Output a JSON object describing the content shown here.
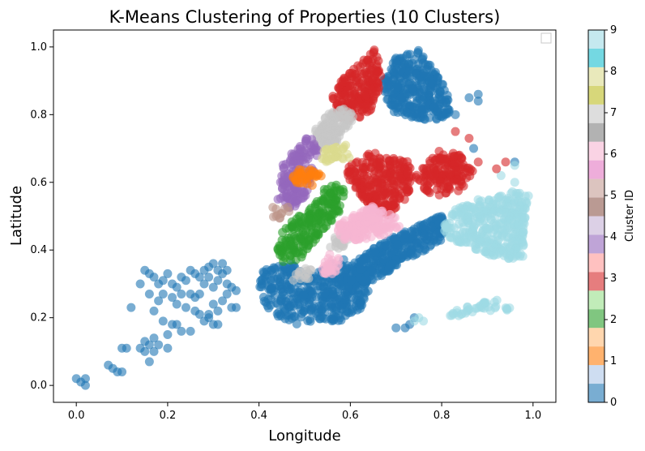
{
  "chart_data": {
    "type": "scatter",
    "title": "K-Means Clustering of Properties (10 Clusters)",
    "xlabel": "Longitude",
    "ylabel": "Latitude",
    "xlim": [
      -0.05,
      1.05
    ],
    "ylim": [
      -0.05,
      1.05
    ],
    "x_ticks": [
      0.0,
      0.2,
      0.4,
      0.6,
      0.8,
      1.0
    ],
    "y_ticks": [
      0.0,
      0.2,
      0.4,
      0.6,
      0.8,
      1.0
    ],
    "x_tick_labels": [
      "0.0",
      "0.2",
      "0.4",
      "0.6",
      "0.8",
      "1.0"
    ],
    "y_tick_labels": [
      "0.0",
      "0.2",
      "0.4",
      "0.6",
      "0.8",
      "1.0"
    ],
    "grid": false,
    "legend": "empty box, top-right",
    "colorbar": {
      "label": "Cluster ID",
      "ticks": [
        "0",
        "1",
        "2",
        "3",
        "4",
        "5",
        "6",
        "7",
        "8",
        "9"
      ],
      "colors": [
        "#1f77b4",
        "#aec7e8",
        "#ff7f0e",
        "#ffbb78",
        "#2ca02c",
        "#98df8a",
        "#d62728",
        "#ff9896",
        "#9467bd",
        "#c5b0d5",
        "#8c564b",
        "#c49c94",
        "#e377c2",
        "#f7b6d2",
        "#7f7f7f",
        "#c7c7c7",
        "#bcbd22",
        "#dbdb8d",
        "#17becf",
        "#9edae5"
      ]
    },
    "cluster_colors": {
      "0": "#1f77b4",
      "1": "#ff7f0e",
      "2": "#2ca02c",
      "3": "#d62728",
      "4": "#9467bd",
      "5": "#bc9488",
      "6": "#f7b6d2",
      "7": "#c7c7c7",
      "8": "#dbdb8d",
      "9": "#9edae5"
    },
    "series": [
      {
        "cluster": 0,
        "region": "western-scatter",
        "cx": 0.2,
        "cy": 0.2,
        "points": [
          [
            0.0,
            0.02
          ],
          [
            0.01,
            0.01
          ],
          [
            0.02,
            0.0
          ],
          [
            0.02,
            0.02
          ],
          [
            0.07,
            0.06
          ],
          [
            0.08,
            0.05
          ],
          [
            0.09,
            0.04
          ],
          [
            0.1,
            0.04
          ],
          [
            0.1,
            0.11
          ],
          [
            0.11,
            0.11
          ],
          [
            0.12,
            0.23
          ],
          [
            0.14,
            0.11
          ],
          [
            0.15,
            0.13
          ],
          [
            0.15,
            0.1
          ],
          [
            0.16,
            0.12
          ],
          [
            0.16,
            0.07
          ],
          [
            0.17,
            0.1
          ],
          [
            0.17,
            0.14
          ],
          [
            0.18,
            0.12
          ],
          [
            0.19,
            0.19
          ],
          [
            0.2,
            0.15
          ],
          [
            0.2,
            0.11
          ],
          [
            0.21,
            0.18
          ],
          [
            0.22,
            0.18
          ],
          [
            0.23,
            0.16
          ],
          [
            0.24,
            0.23
          ],
          [
            0.25,
            0.16
          ],
          [
            0.26,
            0.22
          ],
          [
            0.27,
            0.21
          ],
          [
            0.28,
            0.19
          ],
          [
            0.29,
            0.21
          ],
          [
            0.29,
            0.2
          ],
          [
            0.3,
            0.18
          ],
          [
            0.3,
            0.24
          ],
          [
            0.31,
            0.22
          ],
          [
            0.31,
            0.18
          ],
          [
            0.32,
            0.25
          ],
          [
            0.33,
            0.27
          ],
          [
            0.34,
            0.23
          ],
          [
            0.35,
            0.23
          ],
          [
            0.15,
            0.34
          ],
          [
            0.16,
            0.33
          ],
          [
            0.17,
            0.32
          ],
          [
            0.18,
            0.3
          ],
          [
            0.19,
            0.31
          ],
          [
            0.2,
            0.33
          ],
          [
            0.21,
            0.3
          ],
          [
            0.22,
            0.29
          ],
          [
            0.23,
            0.32
          ],
          [
            0.24,
            0.31
          ],
          [
            0.25,
            0.34
          ],
          [
            0.26,
            0.33
          ],
          [
            0.27,
            0.32
          ],
          [
            0.28,
            0.3
          ],
          [
            0.29,
            0.35
          ],
          [
            0.3,
            0.36
          ],
          [
            0.31,
            0.34
          ],
          [
            0.32,
            0.33
          ],
          [
            0.33,
            0.3
          ],
          [
            0.34,
            0.29
          ],
          [
            0.35,
            0.28
          ],
          [
            0.3,
            0.29
          ],
          [
            0.31,
            0.31
          ],
          [
            0.27,
            0.27
          ],
          [
            0.26,
            0.26
          ],
          [
            0.28,
            0.34
          ],
          [
            0.29,
            0.32
          ],
          [
            0.32,
            0.36
          ],
          [
            0.33,
            0.34
          ],
          [
            0.17,
            0.22
          ],
          [
            0.18,
            0.25
          ],
          [
            0.16,
            0.27
          ],
          [
            0.14,
            0.3
          ],
          [
            0.19,
            0.27
          ],
          [
            0.21,
            0.26
          ],
          [
            0.22,
            0.24
          ],
          [
            0.23,
            0.27
          ],
          [
            0.25,
            0.27
          ]
        ]
      },
      {
        "cluster": 0,
        "region": "southern-mass",
        "cx": 0.5,
        "cy": 0.28,
        "points": []
      },
      {
        "cluster": 0,
        "region": "northern-mass",
        "cx": 0.72,
        "cy": 0.88,
        "points": []
      },
      {
        "cluster": 0,
        "region": "eastern-strip",
        "cx": 0.75,
        "cy": 0.42,
        "points": []
      },
      {
        "cluster": 1,
        "region": "west-mid",
        "cx": 0.5,
        "cy": 0.62,
        "points": []
      },
      {
        "cluster": 2,
        "region": "center-west",
        "cx": 0.52,
        "cy": 0.47,
        "points": []
      },
      {
        "cluster": 3,
        "region": "north-east",
        "cx": 0.7,
        "cy": 0.65,
        "points": []
      },
      {
        "cluster": 4,
        "region": "west-band",
        "cx": 0.5,
        "cy": 0.63,
        "points": []
      },
      {
        "cluster": 5,
        "region": "small-blob",
        "cx": 0.45,
        "cy": 0.51,
        "points": []
      },
      {
        "cluster": 6,
        "region": "center",
        "cx": 0.63,
        "cy": 0.49,
        "points": []
      },
      {
        "cluster": 7,
        "region": "center-north",
        "cx": 0.58,
        "cy": 0.75,
        "points": []
      },
      {
        "cluster": 8,
        "region": "small-center",
        "cx": 0.56,
        "cy": 0.68,
        "points": []
      },
      {
        "cluster": 9,
        "region": "east",
        "cx": 0.88,
        "cy": 0.46,
        "points": []
      }
    ]
  }
}
